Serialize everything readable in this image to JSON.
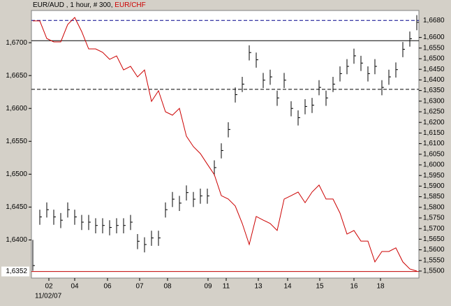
{
  "chart_data": {
    "type": "ohlc",
    "title_info": ", 1 hour, # 300,",
    "date_label": "11/02/07",
    "x": [
      0,
      1,
      2,
      3,
      4,
      5,
      6,
      7,
      8,
      9,
      10,
      11,
      12,
      13,
      14,
      15,
      16,
      17,
      18,
      19,
      20,
      21,
      22,
      23,
      24,
      25,
      26,
      27,
      28,
      29,
      30,
      31,
      32,
      33,
      34,
      35,
      36,
      37,
      38,
      39,
      40,
      41,
      42,
      43,
      44,
      45,
      46,
      47,
      48,
      49,
      50,
      51,
      52,
      53,
      54,
      55
    ],
    "xlim": [
      -0.2,
      55.3
    ],
    "xticks": [
      {
        "value": 2.3,
        "label": "02"
      },
      {
        "value": 6,
        "label": "04"
      },
      {
        "value": 10.7,
        "label": "06"
      },
      {
        "value": 15.3,
        "label": "07"
      },
      {
        "value": 19.3,
        "label": "08"
      },
      {
        "value": 25.1,
        "label": "09"
      },
      {
        "value": 27.7,
        "label": "11"
      },
      {
        "value": 32.3,
        "label": "13"
      },
      {
        "value": 36.5,
        "label": "14"
      },
      {
        "value": 41.1,
        "label": "15"
      },
      {
        "value": 46,
        "label": "16"
      },
      {
        "value": 49.8,
        "label": "18"
      }
    ],
    "ylim": [
      1.6342,
      1.6749
    ],
    "yticks": [
      {
        "value": 1.64,
        "label": "1,6400"
      },
      {
        "value": 1.645,
        "label": "1,6450"
      },
      {
        "value": 1.65,
        "label": "1,6500"
      },
      {
        "value": 1.655,
        "label": "1,6550"
      },
      {
        "value": 1.66,
        "label": "1,6600"
      },
      {
        "value": 1.665,
        "label": "1,6650"
      },
      {
        "value": 1.67,
        "label": "1,6700"
      }
    ],
    "y2lim": [
      1.5467,
      1.6727
    ],
    "y2ticks": [
      {
        "value": 1.55,
        "label": "1,5500"
      },
      {
        "value": 1.555,
        "label": "1,5550"
      },
      {
        "value": 1.56,
        "label": "1,5600"
      },
      {
        "value": 1.565,
        "label": "1,5650"
      },
      {
        "value": 1.57,
        "label": "1,5700"
      },
      {
        "value": 1.575,
        "label": "1,5750"
      },
      {
        "value": 1.58,
        "label": "1,5800"
      },
      {
        "value": 1.585,
        "label": "1,5850"
      },
      {
        "value": 1.59,
        "label": "1,5900"
      },
      {
        "value": 1.595,
        "label": "1,5950"
      },
      {
        "value": 1.6,
        "label": "1,6000"
      },
      {
        "value": 1.605,
        "label": "1,6050"
      },
      {
        "value": 1.61,
        "label": "1,6100"
      },
      {
        "value": 1.615,
        "label": "1,6150"
      },
      {
        "value": 1.62,
        "label": "1,6200"
      },
      {
        "value": 1.625,
        "label": "1,6250"
      },
      {
        "value": 1.63,
        "label": "1,6300"
      },
      {
        "value": 1.635,
        "label": "1,6350"
      },
      {
        "value": 1.64,
        "label": "1,6400"
      },
      {
        "value": 1.645,
        "label": "1,6450"
      },
      {
        "value": 1.65,
        "label": "1,6500"
      },
      {
        "value": 1.655,
        "label": "1,6550"
      },
      {
        "value": 1.66,
        "label": "1,6600"
      }
    ],
    "reference_lines": [
      {
        "value": 1.668,
        "axis": "y2",
        "label": "1,6680",
        "color": "#00008b",
        "dash": true
      },
      {
        "value": 1.6703,
        "axis": "y",
        "color": "#000000",
        "dash": false
      },
      {
        "value": 1.6629,
        "axis": "y",
        "color": "#000000",
        "dash": true
      },
      {
        "value": 1.6352,
        "axis": "y",
        "label": "1,6352",
        "color": "#c00000",
        "dash": false,
        "label_box": "#ffffff"
      }
    ],
    "series": [
      {
        "name": "EUR/AUD",
        "type": "ohlc",
        "color": "#000000",
        "high": [
          1.64,
          1.6446,
          1.6457,
          1.6446,
          1.6441,
          1.6457,
          1.6446,
          1.6438,
          1.6438,
          1.6433,
          1.6433,
          1.643,
          1.6433,
          1.6433,
          1.6438,
          1.6409,
          1.6404,
          1.6414,
          1.6414,
          1.6457,
          1.6473,
          1.6467,
          1.6483,
          1.6473,
          1.6478,
          1.6478,
          1.6521,
          1.6547,
          1.6579,
          1.6632,
          1.6648,
          1.6696,
          1.6685,
          1.6654,
          1.6659,
          1.6627,
          1.6654,
          1.6611,
          1.6597,
          1.6614,
          1.6616,
          1.6643,
          1.6627,
          1.6648,
          1.6664,
          1.6675,
          1.6691,
          1.668,
          1.6664,
          1.6675,
          1.6643,
          1.6659,
          1.667,
          1.6701,
          1.6717,
          1.6742
        ],
        "low": [
          1.6353,
          1.6423,
          1.6434,
          1.6423,
          1.6418,
          1.6434,
          1.6423,
          1.6415,
          1.6415,
          1.641,
          1.641,
          1.6407,
          1.641,
          1.641,
          1.6415,
          1.6386,
          1.6381,
          1.6391,
          1.6391,
          1.6434,
          1.645,
          1.6444,
          1.646,
          1.645,
          1.6455,
          1.6455,
          1.6498,
          1.6524,
          1.6556,
          1.6609,
          1.6625,
          1.6673,
          1.6662,
          1.6631,
          1.6636,
          1.6604,
          1.6631,
          1.6588,
          1.6574,
          1.6591,
          1.6593,
          1.662,
          1.6604,
          1.6625,
          1.6641,
          1.6652,
          1.6668,
          1.6657,
          1.6641,
          1.6652,
          1.662,
          1.6636,
          1.6647,
          1.6678,
          1.6694,
          1.6719
        ],
        "close": [
          1.6361,
          1.6435,
          1.6446,
          1.6435,
          1.643,
          1.6446,
          1.6435,
          1.6427,
          1.6427,
          1.6422,
          1.6422,
          1.6419,
          1.6422,
          1.6422,
          1.6427,
          1.6398,
          1.6393,
          1.6403,
          1.6403,
          1.6446,
          1.6462,
          1.6456,
          1.6472,
          1.6462,
          1.6467,
          1.6467,
          1.651,
          1.6536,
          1.6568,
          1.6621,
          1.6637,
          1.6685,
          1.6674,
          1.6643,
          1.6648,
          1.6616,
          1.6643,
          1.66,
          1.6586,
          1.6603,
          1.6605,
          1.6632,
          1.6616,
          1.6637,
          1.6653,
          1.6664,
          1.668,
          1.6669,
          1.6653,
          1.6664,
          1.6632,
          1.6648,
          1.6659,
          1.669,
          1.6706,
          1.6731
        ]
      },
      {
        "name": "EUR/CHF",
        "type": "line",
        "axis": "y2",
        "color": "#cc0000",
        "values": [
          1.6678,
          1.6678,
          1.6595,
          1.6579,
          1.6579,
          1.6661,
          1.6694,
          1.6628,
          1.6546,
          1.6546,
          1.653,
          1.6497,
          1.6513,
          1.6447,
          1.6464,
          1.6414,
          1.6447,
          1.6299,
          1.6349,
          1.625,
          1.6234,
          1.6266,
          1.6135,
          1.6086,
          1.6053,
          1.6003,
          1.5954,
          1.5855,
          1.5839,
          1.5806,
          1.5724,
          1.5625,
          1.5757,
          1.574,
          1.5724,
          1.5691,
          1.5839,
          1.5855,
          1.5872,
          1.5822,
          1.5872,
          1.5905,
          1.5839,
          1.5839,
          1.5773,
          1.5674,
          1.5691,
          1.5641,
          1.5641,
          1.5543,
          1.5592,
          1.5592,
          1.5609,
          1.5543,
          1.551,
          1.55
        ]
      }
    ]
  }
}
